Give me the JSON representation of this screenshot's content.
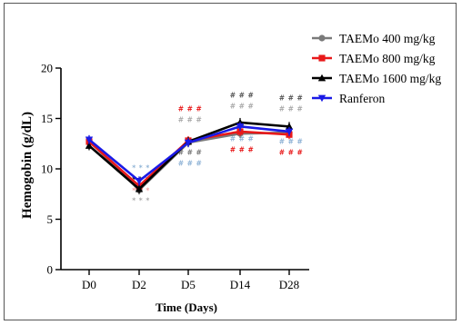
{
  "chart_data": {
    "type": "line",
    "categories": [
      "D0",
      "D2",
      "D5",
      "D14",
      "D28"
    ],
    "xlabel": "Time (Days)",
    "ylabel": "Hemogobin (g/dL)",
    "ylim": [
      0,
      20
    ],
    "yticks": [
      0,
      5,
      10,
      15,
      20
    ],
    "legend_position": "top-right",
    "series": [
      {
        "name": "TAEMo 400 mg/kg",
        "color": "#7a7a7a",
        "marker": "circle",
        "values": [
          12.8,
          7.9,
          12.6,
          13.5,
          13.6
        ]
      },
      {
        "name": "TAEMo 800 mg/kg",
        "color": "#e8191a",
        "marker": "square",
        "values": [
          12.7,
          8.3,
          12.8,
          13.7,
          13.4
        ]
      },
      {
        "name": "TAEMo 1600 mg/kg",
        "color": "#000000",
        "marker": "triangle-up",
        "values": [
          12.3,
          8.0,
          12.7,
          14.6,
          14.2
        ]
      },
      {
        "name": "Ranferon",
        "color": "#1a1ae6",
        "marker": "triangle-down",
        "values": [
          12.9,
          8.8,
          12.6,
          14.2,
          13.7
        ]
      }
    ],
    "annotations": [
      {
        "category": "D2",
        "text": "* * *",
        "color": "#000000",
        "position": "below-upper"
      },
      {
        "category": "D2",
        "text": "* * *",
        "color": "#8fb3d6",
        "position": "above"
      },
      {
        "category": "D2",
        "text": "* * *",
        "color": "#f2a0a0",
        "position": "below"
      },
      {
        "category": "D2",
        "text": "* * *",
        "color": "#aaaaaa",
        "position": "bottom"
      },
      {
        "category": "D5",
        "text": "# # #",
        "color": "#e8191a",
        "position": "above-2"
      },
      {
        "category": "D5",
        "text": "# # #",
        "color": "#aaaaaa",
        "position": "above-1"
      },
      {
        "category": "D5",
        "text": "# # #",
        "color": "#777777",
        "position": "below-1"
      },
      {
        "category": "D5",
        "text": "# # #",
        "color": "#8fb3d6",
        "position": "below-2"
      },
      {
        "category": "D14",
        "text": "# # #",
        "color": "#555555",
        "position": "above-2"
      },
      {
        "category": "D14",
        "text": "# # #",
        "color": "#aaaaaa",
        "position": "above-1"
      },
      {
        "category": "D14",
        "text": "# # #",
        "color": "#8fb3d6",
        "position": "below-1"
      },
      {
        "category": "D14",
        "text": "# # #",
        "color": "#e8191a",
        "position": "below-2"
      },
      {
        "category": "D28",
        "text": "# # #",
        "color": "#555555",
        "position": "above-2"
      },
      {
        "category": "D28",
        "text": "# # #",
        "color": "#aaaaaa",
        "position": "above-1"
      },
      {
        "category": "D28",
        "text": "# # #",
        "color": "#8fb3d6",
        "position": "below-1"
      },
      {
        "category": "D28",
        "text": "# # #",
        "color": "#e8191a",
        "position": "below-2"
      }
    ]
  }
}
